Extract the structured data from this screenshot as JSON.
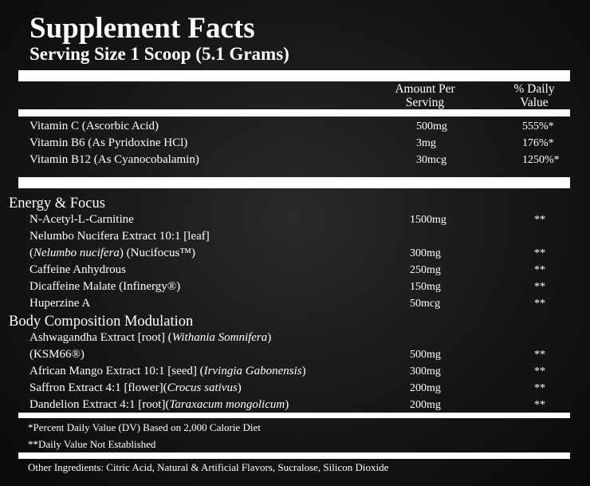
{
  "title": "Supplement Facts",
  "serving_size": "Serving Size 1 Scoop (5.1 Grams)",
  "headers": {
    "amount": "Amount Per Serving",
    "amount_l1": "Amount Per",
    "amount_l2": "Serving",
    "dv_l1": "% Daily",
    "dv_l2": "Value"
  },
  "vitamins": [
    {
      "name": "Vitamin C (Ascorbic Acid)",
      "amount": "500mg",
      "dv": "555%*"
    },
    {
      "name": "Vitamin B6 (As Pyridoxine HCl)",
      "amount": "3mg",
      "dv": "176%*"
    },
    {
      "name": "Vitamin B12 (As Cyanocobalamin)",
      "amount": "30mcg",
      "dv": "1250%*"
    }
  ],
  "sections": [
    {
      "title": "Energy & Focus",
      "rows": [
        {
          "pre": "N-Acetyl-L-Carnitine",
          "it": "",
          "post": "",
          "amount": "1500mg",
          "dv": "**"
        },
        {
          "pre": "Nelumbo Nucifera Extract 10:1 [leaf]",
          "it": "",
          "post": "",
          "amount": "",
          "dv": ""
        },
        {
          "pre": "(",
          "it": "Nelumbo nucifera",
          "post": ") (Nucifocus™)",
          "amount": "300mg",
          "dv": "**"
        },
        {
          "pre": "Caffeine Anhydrous",
          "it": "",
          "post": "",
          "amount": "250mg",
          "dv": "**"
        },
        {
          "pre": "Dicaffeine Malate (Infinergy®)",
          "it": "",
          "post": "",
          "amount": "150mg",
          "dv": "**"
        },
        {
          "pre": "Huperzine A",
          "it": "",
          "post": "",
          "amount": "50mcg",
          "dv": "**"
        }
      ]
    },
    {
      "title": "Body Composition Modulation",
      "rows": [
        {
          "pre": "Ashwagandha Extract [root] (",
          "it": "Withania Somnifera",
          "post": ")",
          "amount": "",
          "dv": ""
        },
        {
          "pre": "(KSM66®)",
          "it": "",
          "post": "",
          "amount": "500mg",
          "dv": "**"
        },
        {
          "pre": "African Mango Extract 10:1 [seed] (",
          "it": "Irvingia Gabonensis",
          "post": ")",
          "amount": "300mg",
          "dv": "**"
        },
        {
          "pre": "Saffron Extract 4:1 [flower](",
          "it": "Crocus sativus",
          "post": ")",
          "amount": "200mg",
          "dv": "**"
        },
        {
          "pre": "Dandelion Extract 4:1 [root](",
          "it": "Taraxacum mongolicum",
          "post": ")",
          "amount": "200mg",
          "dv": "**"
        }
      ]
    }
  ],
  "footnotes": [
    "*Percent Daily Value (DV) Based on 2,000 Calorie Diet",
    "**Daily Value Not Established"
  ],
  "other_ingredients": "Other Ingredients: Citric Acid, Natural & Artificial Flavors, Sucralose, Silicon Dioxide"
}
